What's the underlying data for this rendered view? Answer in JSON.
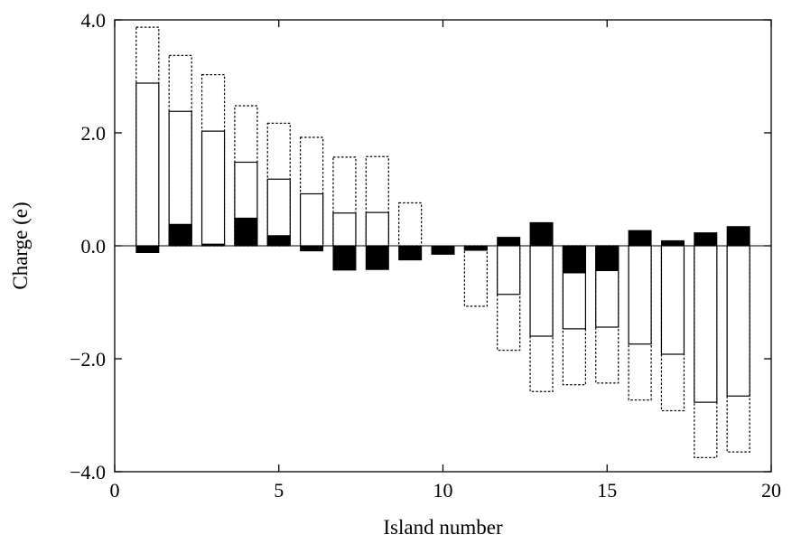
{
  "chart_data": {
    "type": "bar",
    "title": "",
    "xlabel": "Island number",
    "ylabel": "Charge (e)",
    "xlim": [
      0,
      20
    ],
    "ylim": [
      -4.0,
      4.0
    ],
    "x_ticks": [
      0,
      5,
      10,
      15,
      20
    ],
    "x_tick_labels": [
      "0",
      "5",
      "10",
      "15",
      "20"
    ],
    "y_ticks": [
      -4.0,
      -2.0,
      0.0,
      2.0,
      4.0
    ],
    "y_tick_labels": [
      "−4.0",
      "−2.0",
      "0.0",
      "2.0",
      "4.0"
    ],
    "grid": false,
    "legend": "none",
    "categories": [
      1,
      2,
      3,
      4,
      5,
      6,
      7,
      8,
      9,
      10,
      11,
      12,
      13,
      14,
      15,
      16,
      17,
      18,
      19
    ],
    "series": [
      {
        "style": "dotted outline",
        "values": [
          3.87,
          3.37,
          3.03,
          2.48,
          2.17,
          1.92,
          1.57,
          1.58,
          0.76,
          null,
          -1.07,
          -1.85,
          -2.58,
          -2.46,
          -2.43,
          -2.73,
          -2.92,
          -3.75,
          -3.65
        ]
      },
      {
        "style": "solid outline",
        "values": [
          2.88,
          2.38,
          2.03,
          1.48,
          1.18,
          0.92,
          0.58,
          0.59,
          null,
          null,
          null,
          -0.86,
          -1.6,
          -1.47,
          -1.44,
          -1.74,
          -1.92,
          -2.77,
          -2.66
        ]
      },
      {
        "style": "filled black",
        "values": [
          -0.12,
          0.38,
          0.03,
          0.49,
          0.18,
          -0.09,
          -0.43,
          -0.42,
          -0.25,
          -0.15,
          -0.08,
          0.15,
          0.41,
          -0.48,
          -0.44,
          0.27,
          0.09,
          0.23,
          0.34
        ]
      }
    ],
    "colors": {
      "fill": "#000000",
      "outline": "#000000",
      "background": "#ffffff"
    }
  }
}
